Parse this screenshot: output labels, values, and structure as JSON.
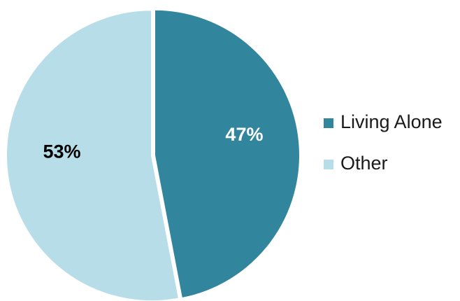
{
  "chart_data": {
    "type": "pie",
    "title": "",
    "slices": [
      {
        "label": "Living Alone",
        "value": 47,
        "display": "47%",
        "color": "#31859c",
        "label_color": "#ffffff"
      },
      {
        "label": "Other",
        "value": 53,
        "display": "53%",
        "color": "#b7dde8",
        "label_color": "#000000"
      }
    ],
    "legend": {
      "position": "right",
      "items": [
        "Living Alone",
        "Other"
      ]
    }
  }
}
